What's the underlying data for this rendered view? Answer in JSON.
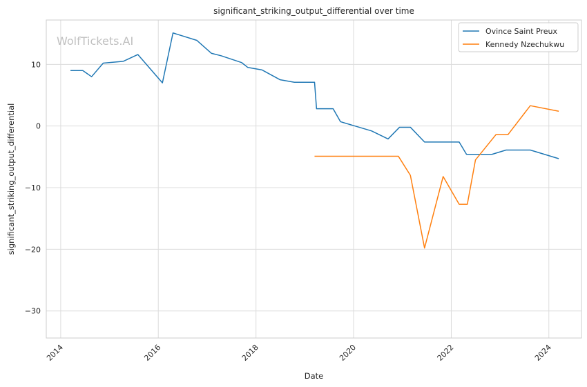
{
  "chart_data": {
    "type": "line",
    "title": "significant_striking_output_differential over time",
    "xlabel": "Date",
    "ylabel": "significant_striking_output_differential",
    "watermark": "WolfTickets.AI",
    "x_ticks": [
      "2014",
      "2016",
      "2018",
      "2020",
      "2022",
      "2024"
    ],
    "y_ticks": [
      "10",
      "0",
      "−10",
      "−20",
      "−30"
    ],
    "xlim": [
      "2013-09-15",
      "2024-09-01"
    ],
    "ylim": [
      -34.4,
      17.2
    ],
    "grid": true,
    "legend_position": "top-right",
    "series": [
      {
        "name": "Ovince Saint Preux",
        "color": "#1f77b4",
        "x": [
          "2014-03-15",
          "2014-06-15",
          "2014-08-20",
          "2014-11-15",
          "2015-04-15",
          "2015-08-01",
          "2016-02-01",
          "2016-04-20",
          "2016-10-15",
          "2017-02-01",
          "2017-04-15",
          "2017-09-15",
          "2017-11-01",
          "2018-02-15",
          "2018-07-01",
          "2018-10-15",
          "2019-03-15",
          "2019-03-30",
          "2019-08-01",
          "2019-09-25",
          "2020-05-15",
          "2020-09-15",
          "2020-12-10",
          "2021-03-01",
          "2021-06-15",
          "2022-03-01",
          "2022-04-25",
          "2022-11-01",
          "2023-02-15",
          "2023-08-15",
          "2024-03-15"
        ],
        "y": [
          9.0,
          9.0,
          8.0,
          10.2,
          10.5,
          11.6,
          7.0,
          15.1,
          13.9,
          11.8,
          11.4,
          10.3,
          9.5,
          9.1,
          7.5,
          7.1,
          7.1,
          2.8,
          2.8,
          0.7,
          -0.8,
          -2.1,
          -0.2,
          -0.2,
          -2.6,
          -2.6,
          -4.6,
          -4.6,
          -3.9,
          -3.9,
          -5.3
        ]
      },
      {
        "name": "Kennedy Nzechukwu",
        "color": "#ff7f0e",
        "x": [
          "2019-03-15",
          "2020-12-01",
          "2021-03-01",
          "2021-06-15",
          "2021-11-01",
          "2022-03-01",
          "2022-05-01",
          "2022-07-01",
          "2022-12-01",
          "2023-03-01",
          "2023-08-15",
          "2024-03-15"
        ],
        "y": [
          -4.9,
          -4.9,
          -8.0,
          -19.8,
          -8.2,
          -12.7,
          -12.7,
          -5.5,
          -1.4,
          -1.4,
          3.3,
          2.4
        ]
      }
    ]
  }
}
